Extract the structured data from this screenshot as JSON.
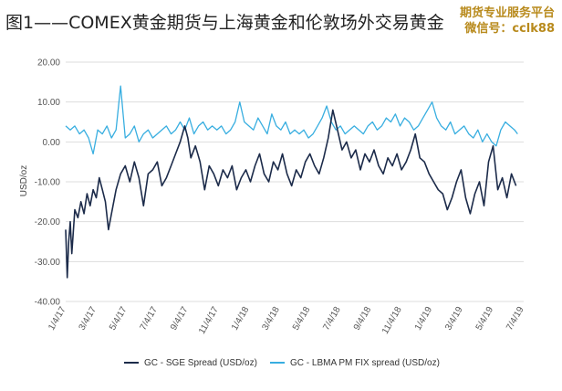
{
  "title": "图1——COMEX黄金期货与上海黄金和伦敦场外交易黄金",
  "watermark": {
    "line1": "期货专业服务平台",
    "line2": "微信号：cclk88"
  },
  "colors": {
    "sge": "#1c2b4a",
    "lbma": "#38aee0",
    "grid": "#dddddd"
  },
  "chart_data": {
    "type": "line",
    "ylabel": "USD/oz",
    "ylim": [
      -40,
      20
    ],
    "yticks": [
      20,
      10,
      0,
      -10,
      -20,
      -30,
      -40
    ],
    "ytick_labels": [
      "20.00",
      "10.00",
      "0.00",
      "-10.00",
      "-20.00",
      "-30.00",
      "-40.00"
    ],
    "xlim": [
      0,
      30
    ],
    "xticks": [
      0,
      2,
      4,
      6,
      8,
      10,
      12,
      14,
      16,
      18,
      20,
      22,
      24,
      26,
      28,
      30
    ],
    "xtick_labels": [
      "1/4/17",
      "3/4/17",
      "5/4/17",
      "7/4/17",
      "9/4/17",
      "11/4/17",
      "1/4/18",
      "3/4/18",
      "5/4/18",
      "7/4/18",
      "9/4/18",
      "11/4/18",
      "1/4/19",
      "3/4/19",
      "5/4/19",
      "7/4/19"
    ],
    "legend_position": "bottom",
    "series": [
      {
        "name": "GC - SGE Spread (USD/oz)",
        "x": [
          0,
          0.1,
          0.2,
          0.3,
          0.4,
          0.6,
          0.8,
          1.0,
          1.2,
          1.4,
          1.6,
          1.8,
          2.0,
          2.2,
          2.4,
          2.6,
          2.8,
          3.0,
          3.3,
          3.6,
          3.9,
          4.2,
          4.5,
          4.8,
          5.1,
          5.4,
          5.7,
          6.0,
          6.3,
          6.6,
          6.9,
          7.2,
          7.5,
          7.8,
          8.0,
          8.2,
          8.5,
          8.8,
          9.1,
          9.4,
          9.7,
          10.0,
          10.3,
          10.6,
          10.9,
          11.2,
          11.5,
          11.8,
          12.1,
          12.4,
          12.7,
          13.0,
          13.3,
          13.6,
          13.9,
          14.2,
          14.5,
          14.8,
          15.1,
          15.4,
          15.7,
          16.0,
          16.3,
          16.6,
          16.9,
          17.2,
          17.5,
          17.8,
          18.1,
          18.4,
          18.7,
          19.0,
          19.3,
          19.6,
          19.9,
          20.2,
          20.5,
          20.8,
          21.1,
          21.4,
          21.7,
          22.0,
          22.3,
          22.6,
          22.9,
          23.2,
          23.5,
          23.8,
          24.1,
          24.4,
          24.7,
          25.0,
          25.3,
          25.6,
          25.9,
          26.2,
          26.5,
          26.8,
          27.1,
          27.4,
          27.7,
          28.0,
          28.3,
          28.6,
          28.9,
          29.2,
          29.5
        ],
        "values": [
          -22,
          -34,
          -25,
          -20,
          -28,
          -17,
          -19,
          -15,
          -18,
          -13,
          -16,
          -12,
          -14,
          -9,
          -12,
          -15,
          -22,
          -18,
          -12,
          -8,
          -6,
          -10,
          -5,
          -9,
          -16,
          -8,
          -7,
          -5,
          -11,
          -9,
          -6,
          -3,
          0,
          4,
          1,
          -4,
          -1,
          -5,
          -12,
          -6,
          -8,
          -11,
          -7,
          -9,
          -6,
          -12,
          -9,
          -7,
          -10,
          -6,
          -3,
          -8,
          -10,
          -5,
          -7,
          -3,
          -8,
          -11,
          -7,
          -9,
          -5,
          -3,
          -6,
          -8,
          -4,
          1,
          8,
          3,
          -2,
          0,
          -4,
          -2,
          -7,
          -3,
          -5,
          -2,
          -6,
          -8,
          -4,
          -6,
          -3,
          -7,
          -5,
          -2,
          2,
          -4,
          -5,
          -8,
          -10,
          -12,
          -13,
          -17,
          -14,
          -10,
          -7,
          -14,
          -18,
          -13,
          -10,
          -16,
          -5,
          -1,
          -12,
          -9,
          -14,
          -8,
          -11
        ]
      },
      {
        "name": "GC - LBMA PM FIX spread (USD/oz)",
        "x": [
          0,
          0.3,
          0.6,
          0.9,
          1.2,
          1.5,
          1.8,
          2.1,
          2.4,
          2.7,
          3.0,
          3.3,
          3.6,
          3.9,
          4.2,
          4.5,
          4.8,
          5.1,
          5.4,
          5.7,
          6.0,
          6.3,
          6.6,
          6.9,
          7.2,
          7.5,
          7.8,
          8.1,
          8.4,
          8.7,
          9.0,
          9.3,
          9.6,
          9.9,
          10.2,
          10.5,
          10.8,
          11.1,
          11.4,
          11.7,
          12.0,
          12.3,
          12.6,
          12.9,
          13.2,
          13.5,
          13.8,
          14.1,
          14.4,
          14.7,
          15.0,
          15.3,
          15.6,
          15.9,
          16.2,
          16.5,
          16.8,
          17.1,
          17.4,
          17.7,
          18.0,
          18.3,
          18.6,
          18.9,
          19.2,
          19.5,
          19.8,
          20.1,
          20.4,
          20.7,
          21.0,
          21.3,
          21.6,
          21.9,
          22.2,
          22.5,
          22.8,
          23.1,
          23.4,
          23.7,
          24.0,
          24.3,
          24.6,
          24.9,
          25.2,
          25.5,
          25.8,
          26.1,
          26.4,
          26.7,
          27.0,
          27.3,
          27.6,
          27.9,
          28.2,
          28.5,
          28.8,
          29.1,
          29.4,
          29.6
        ],
        "values": [
          4,
          3,
          4,
          2,
          3,
          1,
          -3,
          3,
          2,
          4,
          1,
          3,
          14,
          1,
          2,
          4,
          0,
          2,
          3,
          1,
          2,
          3,
          4,
          2,
          3,
          5,
          3,
          6,
          2,
          4,
          5,
          3,
          4,
          3,
          4,
          2,
          3,
          5,
          10,
          5,
          4,
          3,
          6,
          4,
          2,
          7,
          4,
          3,
          5,
          2,
          3,
          2,
          3,
          1,
          2,
          4,
          6,
          9,
          5,
          3,
          4,
          2,
          3,
          4,
          3,
          2,
          4,
          5,
          3,
          4,
          6,
          5,
          7,
          4,
          6,
          5,
          3,
          4,
          6,
          8,
          10,
          6,
          4,
          3,
          5,
          2,
          3,
          4,
          2,
          1,
          3,
          0,
          2,
          0,
          -1,
          3,
          5,
          4,
          3,
          2
        ]
      }
    ]
  }
}
